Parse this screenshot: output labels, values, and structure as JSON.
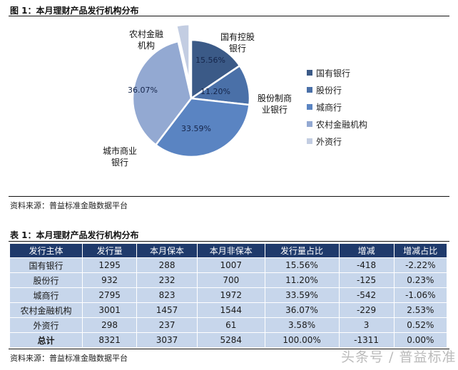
{
  "figure": {
    "title": "图 1：本月理财产品发行机构分布",
    "source": "资料来源：普益标准金融数据平台"
  },
  "table_section": {
    "title": "表 1：本月理财产品发行机构分布",
    "source": "资料来源：普益标准金融数据平台",
    "columns": [
      "发行主体",
      "发行量",
      "本月保本",
      "本月非保本",
      "发行量占比",
      "增减",
      "增减占比"
    ],
    "rows": [
      {
        "name": "国有银行",
        "issued": "1295",
        "guaranteed": "288",
        "non_guaranteed": "1007",
        "share": "15.56%",
        "change": "-418",
        "change_share": "-2.22%"
      },
      {
        "name": "股份行",
        "issued": "932",
        "guaranteed": "232",
        "non_guaranteed": "700",
        "share": "11.20%",
        "change": "-125",
        "change_share": "0.23%"
      },
      {
        "name": "城商行",
        "issued": "2795",
        "guaranteed": "823",
        "non_guaranteed": "1972",
        "share": "33.59%",
        "change": "-542",
        "change_share": "-1.06%"
      },
      {
        "name": "农村金融机构",
        "issued": "3001",
        "guaranteed": "1457",
        "non_guaranteed": "1544",
        "share": "36.07%",
        "change": "-229",
        "change_share": "2.53%"
      },
      {
        "name": "外资行",
        "issued": "298",
        "guaranteed": "237",
        "non_guaranteed": "61",
        "share": "3.58%",
        "change": "3",
        "change_share": "0.52%"
      },
      {
        "name": "总计",
        "issued": "8321",
        "guaranteed": "3037",
        "non_guaranteed": "5284",
        "share": "100.00%",
        "change": "-1311",
        "change_share": "0.00%"
      }
    ]
  },
  "watermark": "头条号 / 普益标准",
  "colors": {
    "state_banks": "#3b5a87",
    "joint_stock": "#4a70a8",
    "city_commercial": "#5a84c2",
    "rural": "#93a9d2",
    "foreign": "#c3cde2",
    "header_bg": "#1f3a6b",
    "cell_bg": "#c7d6eb",
    "negative": "#2fa67a",
    "positive": "#c8334f"
  },
  "chart_data": {
    "type": "pie",
    "title": "图 1：本月理财产品发行机构分布",
    "categories": [
      "国有银行",
      "股份行",
      "城商行",
      "农村金融机构",
      "外资行"
    ],
    "slice_labels": [
      "国有控股银行",
      "股份制商业银行",
      "城市商业银行",
      "农村金融机构",
      ""
    ],
    "values": [
      15.56,
      11.2,
      33.59,
      36.07,
      3.58
    ],
    "value_labels": [
      "15.56%",
      "11.20%",
      "33.59%",
      "36.07%",
      ""
    ],
    "exploded": [
      false,
      false,
      false,
      false,
      true
    ],
    "start_angle_deg": 0,
    "direction": "clockwise",
    "legend_position": "right",
    "legend": [
      "国有银行",
      "股份行",
      "城商行",
      "农村金融机构",
      "外资行"
    ]
  }
}
